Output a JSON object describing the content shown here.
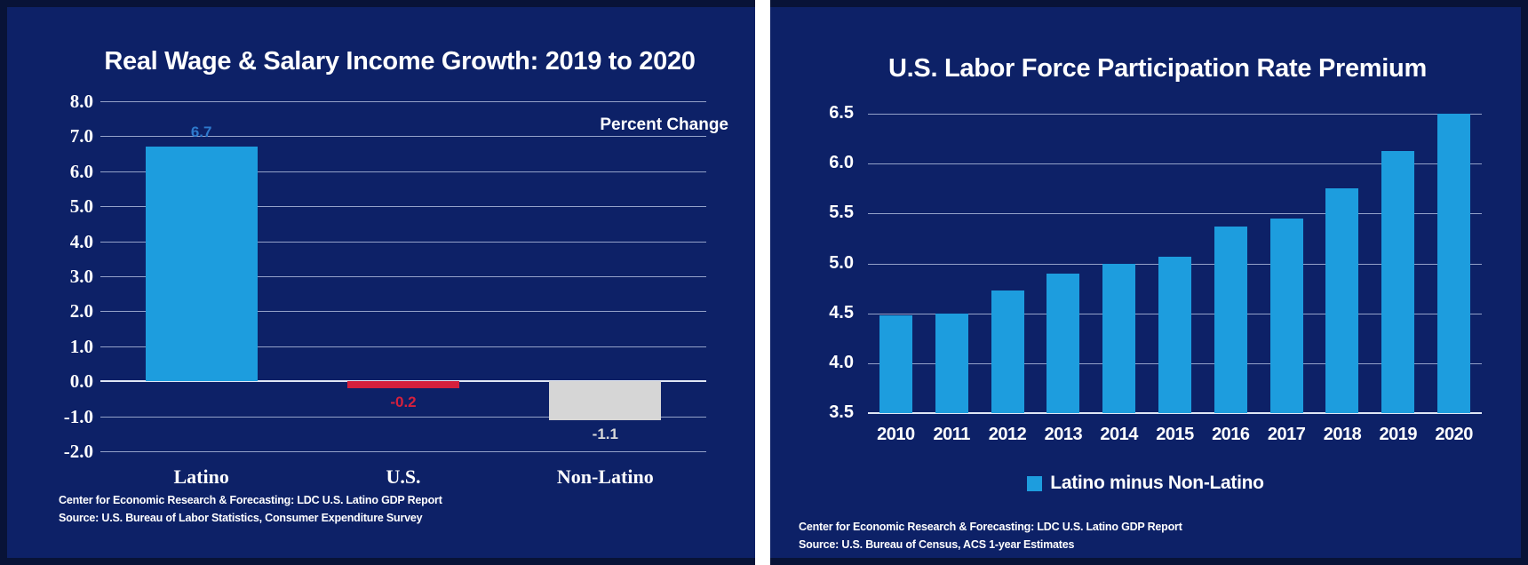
{
  "colors": {
    "panel_background": "#0d2167",
    "frame_edge": "#081337",
    "divider": "#ffffff",
    "gridline": "rgba(173,185,219,0.85)",
    "baseline": "#dfe6f5",
    "bar_blue": "#1d9dde",
    "bar_red": "#d5203d",
    "bar_gray": "#d6d6d6",
    "text_white": "#ffffff",
    "value_blue": "#2e79cc"
  },
  "charts": [
    {
      "title": "Real Wage & Salary Income Growth: 2019 to 2020",
      "axis_note": "Percent Change",
      "footer_line1": "Center for Economic Research & Forecasting: LDC U.S. Latino GDP Report",
      "footer_line2": "Source: U.S. Bureau of Labor Statistics, Consumer Expenditure Survey",
      "chart_data": {
        "type": "bar",
        "title": "Real Wage & Salary Income Growth: 2019 to 2020",
        "xlabel": "",
        "ylabel": "Percent Change",
        "categories": [
          "Latino",
          "U.S.",
          "Non-Latino"
        ],
        "values": [
          6.7,
          -0.2,
          -1.1
        ],
        "value_labels": [
          "6.7",
          "-0.2",
          "-1.1"
        ],
        "bar_colors": [
          "#1d9dde",
          "#d5203d",
          "#d6d6d6"
        ],
        "value_label_colors": [
          "#2e79cc",
          "#d5203d",
          "#d9d9d9"
        ],
        "ylim": [
          -2.0,
          8.0
        ],
        "ytick_values": [
          8,
          7,
          6,
          5,
          4,
          3,
          2,
          1,
          0,
          -1,
          -2
        ],
        "ytick_labels": [
          "8.0",
          "7.0",
          "6.0",
          "5.0",
          "4.0",
          "3.0",
          "2.0",
          "1.0",
          "0.0",
          "-1.0",
          "-2.0"
        ],
        "grid": true,
        "legend_position": "none",
        "bar_width_frac": 0.554,
        "cat_gap": 16,
        "val_gap_above": 26,
        "val_gap_below": 6
      }
    },
    {
      "title": "U.S. Labor Force Participation Rate Premium",
      "legend_label": "Latino minus Non-Latino",
      "footer_line1": "Center for Economic Research & Forecasting: LDC U.S. Latino GDP Report",
      "footer_line2": "Source: U.S. Bureau of Census, ACS 1-year Estimates",
      "chart_data": {
        "type": "bar",
        "title": "U.S. Labor Force Participation Rate Premium",
        "xlabel": "",
        "ylabel": "",
        "categories": [
          "2010",
          "2011",
          "2012",
          "2013",
          "2014",
          "2015",
          "2016",
          "2017",
          "2018",
          "2019",
          "2020"
        ],
        "values": [
          4.48,
          4.5,
          4.73,
          4.9,
          5.0,
          5.07,
          5.37,
          5.45,
          5.75,
          6.13,
          6.5
        ],
        "bar_colors": [
          "#1d9dde",
          "#1d9dde",
          "#1d9dde",
          "#1d9dde",
          "#1d9dde",
          "#1d9dde",
          "#1d9dde",
          "#1d9dde",
          "#1d9dde",
          "#1d9dde",
          "#1d9dde"
        ],
        "series_name": "Latino minus Non-Latino",
        "ylim": [
          3.5,
          6.5
        ],
        "ytick_values": [
          6.5,
          6.0,
          5.5,
          5.0,
          4.5,
          4.0,
          3.5
        ],
        "ytick_labels": [
          "6.5",
          "6.0",
          "5.5",
          "5.0",
          "4.5",
          "4.0",
          "3.5"
        ],
        "grid": true,
        "legend_position": "bottom",
        "bar_width_frac": 0.59,
        "cat_gap": 13,
        "val_gap_above": 0,
        "val_gap_below": 0
      }
    }
  ]
}
